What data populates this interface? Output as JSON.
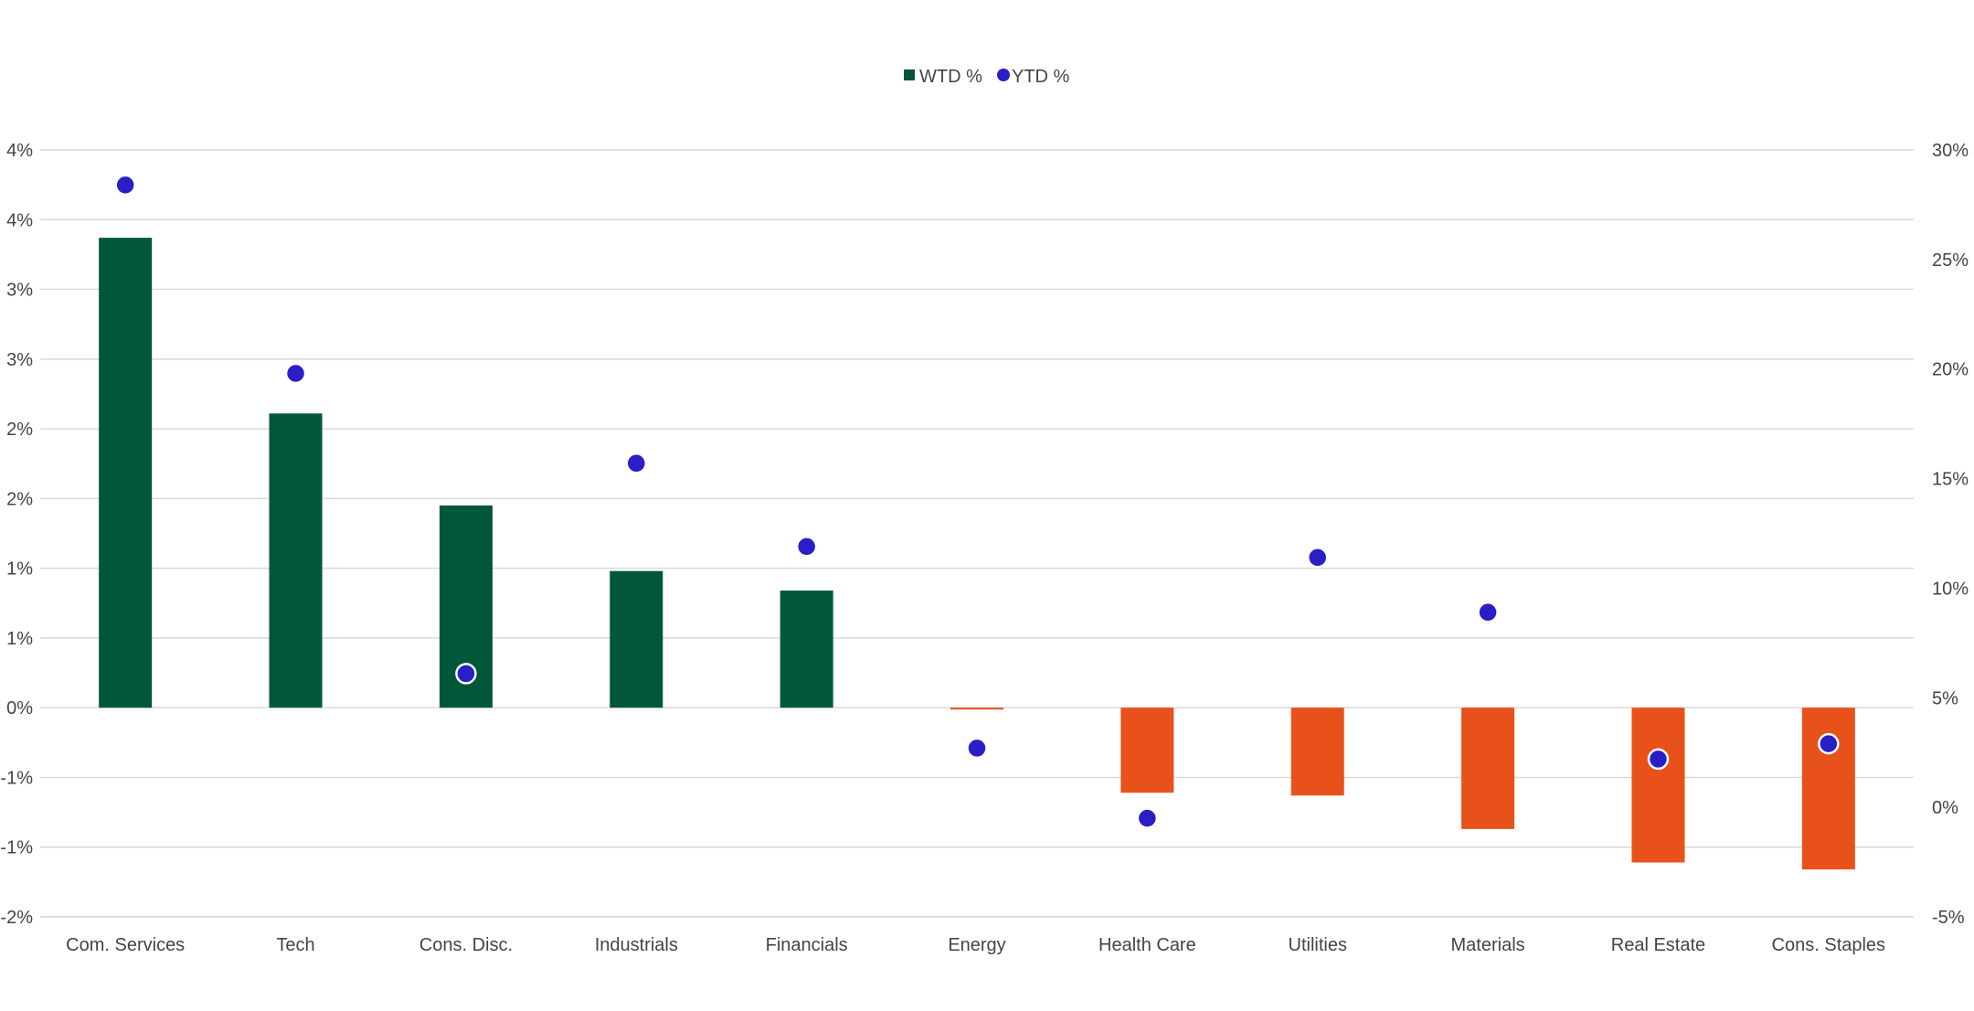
{
  "chart_data": {
    "type": "bar",
    "categories": [
      "Com. Services",
      "Tech",
      "Cons. Disc.",
      "Industrials",
      "Financials",
      "Energy",
      "Health Care",
      "Utilities",
      "Materials",
      "Real Estate",
      "Cons. Staples"
    ],
    "series": [
      {
        "name": "WTD %",
        "kind": "bar",
        "axis": "left",
        "values": [
          3.37,
          2.11,
          1.45,
          0.98,
          0.84,
          -0.01,
          -0.61,
          -0.63,
          -0.87,
          -1.11,
          -1.16
        ]
      },
      {
        "name": "YTD %",
        "kind": "scatter",
        "axis": "right",
        "values": [
          28.4,
          19.8,
          6.1,
          15.7,
          11.9,
          2.7,
          -0.5,
          11.4,
          8.9,
          2.2,
          2.9
        ]
      }
    ],
    "left_axis": {
      "ylim": [
        -1.5,
        4.0
      ],
      "ticks": [
        -1.5,
        -1.0,
        -0.5,
        0.0,
        0.5,
        1.0,
        1.5,
        2.0,
        2.5,
        3.0,
        3.5,
        4.0
      ],
      "tick_labels": [
        "-2%",
        "-1%",
        "-1%",
        "0%",
        "1%",
        "1%",
        "2%",
        "2%",
        "3%",
        "3%",
        "4%",
        "4%"
      ]
    },
    "right_axis": {
      "ylim": [
        -5,
        30
      ],
      "ticks": [
        -5,
        0,
        5,
        10,
        15,
        20,
        25,
        30
      ],
      "tick_labels": [
        "-5%",
        "0%",
        "5%",
        "10%",
        "15%",
        "20%",
        "25%",
        "30%"
      ]
    },
    "legend": {
      "placement": "top-center",
      "entries": [
        "WTD %",
        "YTD %"
      ]
    },
    "grid": true,
    "colors": {
      "bar_positive": "#02573b",
      "bar_negative": "#e8511a",
      "dot": "#2a1fc6",
      "dot_outline": "#ffffff",
      "gridline": "#d9d9d9",
      "text": "#444444"
    }
  }
}
